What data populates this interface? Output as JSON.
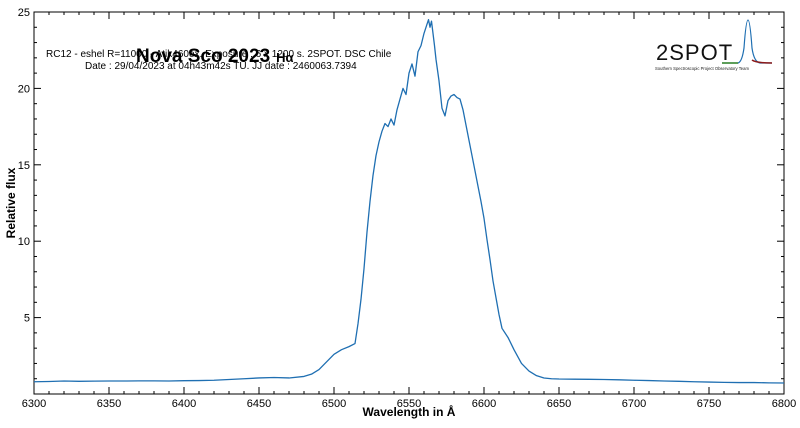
{
  "chart_data": {
    "type": "line",
    "title": "Nova Sco 2023",
    "title_suffix": "Hα",
    "info_lines": [
      "RC12 - eshel R=11000 - Atik460ex. Exposure : 6 x 1200 s. 2SPOT. DSC Chile",
      "Date : 29/04/2023 at 04h43m42s TU. JJ date : 2460063.7394"
    ],
    "xlabel": "Wavelength in Å",
    "ylabel": "Relative flux",
    "xlim": [
      6300,
      6800
    ],
    "ylim": [
      0,
      25
    ],
    "x_ticks": [
      6300,
      6350,
      6400,
      6450,
      6500,
      6550,
      6600,
      6650,
      6700,
      6750,
      6800
    ],
    "y_ticks": [
      5,
      10,
      15,
      20,
      25
    ],
    "y_tick_labels": [
      "5",
      "10",
      "15",
      "20",
      "25"
    ],
    "grid": false,
    "line_color": "#1f6fb2",
    "series": [
      {
        "x": [
          6300,
          6310,
          6320,
          6330,
          6340,
          6350,
          6360,
          6370,
          6380,
          6390,
          6400,
          6410,
          6420,
          6430,
          6440,
          6450,
          6460,
          6470,
          6480,
          6485,
          6490,
          6495,
          6500,
          6505,
          6510,
          6514,
          6516,
          6518,
          6520,
          6522,
          6524,
          6526,
          6528,
          6530,
          6532,
          6534,
          6536,
          6538,
          6540,
          6542,
          6544,
          6546,
          6548,
          6550,
          6552,
          6554,
          6556,
          6558,
          6560,
          6562,
          6563,
          6564,
          6565,
          6566,
          6567,
          6568,
          6570,
          6572,
          6574,
          6576,
          6578,
          6580,
          6582,
          6584,
          6586,
          6588,
          6590,
          6592,
          6594,
          6596,
          6598,
          6600,
          6602,
          6604,
          6606,
          6608,
          6610,
          6612,
          6616,
          6620,
          6625,
          6630,
          6635,
          6640,
          6645,
          6650,
          6660,
          6670,
          6680,
          6690,
          6700,
          6710,
          6720,
          6730,
          6740,
          6750,
          6760,
          6770,
          6780,
          6790,
          6800
        ],
        "y": [
          0.8,
          0.82,
          0.85,
          0.83,
          0.84,
          0.85,
          0.85,
          0.86,
          0.86,
          0.85,
          0.87,
          0.88,
          0.9,
          0.95,
          1.0,
          1.05,
          1.08,
          1.05,
          1.15,
          1.3,
          1.6,
          2.1,
          2.6,
          2.9,
          3.1,
          3.3,
          4.6,
          6.2,
          8.2,
          10.6,
          12.6,
          14.3,
          15.6,
          16.5,
          17.2,
          17.7,
          17.5,
          18.0,
          17.6,
          18.6,
          19.3,
          20.0,
          19.6,
          21.0,
          21.6,
          20.8,
          22.4,
          22.8,
          23.6,
          24.2,
          24.5,
          24.0,
          24.4,
          23.6,
          22.8,
          21.9,
          20.5,
          18.7,
          18.2,
          19.2,
          19.5,
          19.6,
          19.4,
          19.3,
          18.6,
          17.6,
          16.6,
          15.6,
          14.6,
          13.6,
          12.6,
          11.5,
          10.1,
          8.8,
          7.4,
          6.3,
          5.2,
          4.3,
          3.7,
          2.9,
          2.0,
          1.5,
          1.2,
          1.05,
          1.0,
          0.98,
          0.97,
          0.96,
          0.95,
          0.93,
          0.9,
          0.88,
          0.85,
          0.83,
          0.8,
          0.78,
          0.76,
          0.75,
          0.75,
          0.73,
          0.72
        ]
      }
    ]
  },
  "logo": {
    "text": "2SPOT",
    "caption": "Southern Spectroscopic Project Observatory Team"
  }
}
